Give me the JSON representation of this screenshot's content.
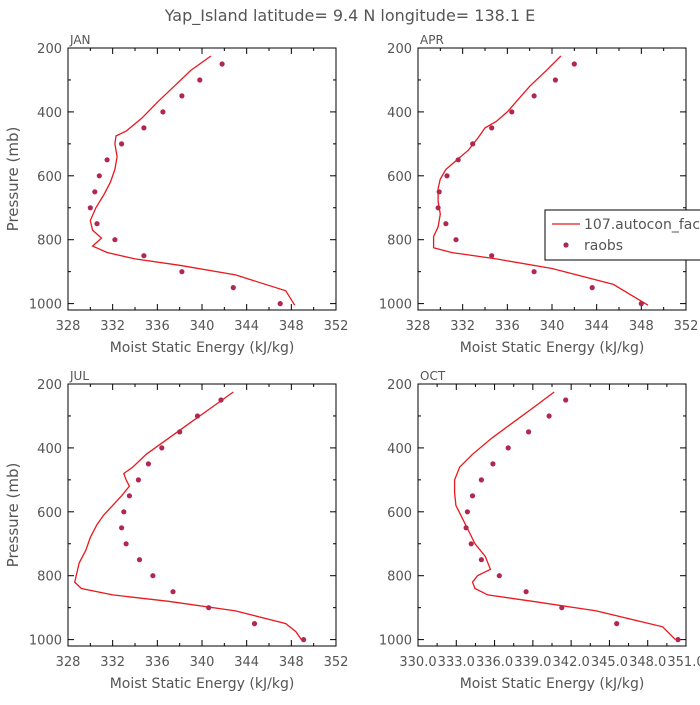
{
  "page_title": "Yap_Island  latitude= 9.4 N longitude= 138.1 E",
  "legend": {
    "model_label": "107.autocon_fac",
    "obs_label": "raobs"
  },
  "colors": {
    "model_line": "#e8191f",
    "obs_marker": "#b0284f",
    "frame": "#000000",
    "text": "#555555"
  },
  "chart_data": [
    {
      "type": "line",
      "panel": "top-left",
      "title": "JAN",
      "xlabel": "Moist Static Energy (kJ/kg)",
      "ylabel": "Pressure (mb)",
      "xlim": [
        328,
        352
      ],
      "ylim": [
        1020,
        200
      ],
      "xticks": [
        328,
        332,
        336,
        340,
        344,
        348,
        352
      ],
      "xtick_labels": [
        "328",
        "332",
        "336",
        "340",
        "344",
        "348",
        "352"
      ],
      "yticks": [
        200,
        400,
        600,
        800,
        1000
      ],
      "ytick_labels": [
        "200",
        "400",
        "600",
        "800",
        "1000"
      ],
      "series": [
        {
          "name": "107.autocon_fac",
          "kind": "line",
          "x": [
            340.8,
            339.0,
            337.5,
            336.0,
            334.6,
            333.2,
            332.3,
            332.2,
            332.4,
            332.2,
            331.8,
            331.2,
            330.5,
            330.0,
            330.2,
            331.0,
            330.2,
            331.5,
            334.0,
            338.0,
            343.0,
            347.5,
            348.3
          ],
          "y": [
            225,
            270,
            320,
            370,
            420,
            460,
            475,
            500,
            540,
            580,
            620,
            660,
            700,
            740,
            770,
            795,
            820,
            840,
            860,
            880,
            910,
            960,
            1005
          ]
        },
        {
          "name": "raobs",
          "kind": "scatter",
          "x": [
            341.8,
            339.8,
            338.2,
            336.5,
            334.8,
            332.8,
            331.5,
            330.8,
            330.4,
            330.0,
            330.6,
            332.2,
            334.8,
            338.2,
            342.8,
            347.0
          ],
          "y": [
            250,
            300,
            350,
            400,
            450,
            500,
            550,
            600,
            650,
            700,
            750,
            800,
            850,
            900,
            950,
            1000
          ]
        }
      ]
    },
    {
      "type": "line",
      "panel": "top-right",
      "title": "APR",
      "xlabel": "Moist Static Energy (kJ/kg)",
      "ylabel": "",
      "xlim": [
        328,
        352
      ],
      "ylim": [
        1020,
        200
      ],
      "xticks": [
        328,
        332,
        336,
        340,
        344,
        348,
        352
      ],
      "xtick_labels": [
        "328",
        "332",
        "336",
        "340",
        "344",
        "348",
        "352"
      ],
      "yticks": [
        200,
        400,
        600,
        800,
        1000
      ],
      "ytick_labels": [
        "200",
        "400",
        "600",
        "800",
        "1000"
      ],
      "legend": "right",
      "series": [
        {
          "name": "107.autocon_fac",
          "kind": "line",
          "x": [
            340.8,
            339.5,
            338.0,
            337.0,
            336.0,
            335.0,
            334.0,
            333.4,
            332.5,
            331.5,
            330.5,
            330.0,
            329.8,
            329.8,
            330.0,
            329.8,
            329.4,
            329.4,
            331.0,
            335.0,
            340.0,
            345.5,
            348.6
          ],
          "y": [
            225,
            270,
            320,
            360,
            400,
            430,
            450,
            480,
            520,
            550,
            580,
            610,
            640,
            680,
            720,
            760,
            790,
            825,
            840,
            860,
            890,
            940,
            1005
          ]
        },
        {
          "name": "raobs",
          "kind": "scatter",
          "x": [
            342.0,
            340.3,
            338.4,
            336.4,
            334.6,
            332.9,
            331.6,
            330.6,
            329.9,
            329.8,
            330.5,
            331.4,
            334.6,
            338.4,
            343.6,
            348.0
          ],
          "y": [
            250,
            300,
            350,
            400,
            450,
            500,
            550,
            600,
            650,
            700,
            750,
            800,
            850,
            900,
            950,
            1000
          ]
        }
      ]
    },
    {
      "type": "line",
      "panel": "bottom-left",
      "title": "JUL",
      "xlabel": "Moist Static Energy (kJ/kg)",
      "ylabel": "Pressure (mb)",
      "xlim": [
        328,
        352
      ],
      "ylim": [
        1020,
        200
      ],
      "xticks": [
        328,
        332,
        336,
        340,
        344,
        348,
        352
      ],
      "xtick_labels": [
        "328",
        "332",
        "336",
        "340",
        "344",
        "348",
        "352"
      ],
      "yticks": [
        200,
        400,
        600,
        800,
        1000
      ],
      "ytick_labels": [
        "200",
        "400",
        "600",
        "800",
        "1000"
      ],
      "series": [
        {
          "name": "107.autocon_fac",
          "kind": "line",
          "x": [
            342.8,
            341.0,
            339.0,
            337.0,
            335.0,
            333.8,
            333.0,
            333.2,
            333.5,
            332.8,
            332.0,
            331.2,
            330.6,
            330.0,
            329.6,
            329.0,
            328.6,
            329.2,
            332.0,
            337.0,
            343.0,
            347.5,
            348.4,
            348.9
          ],
          "y": [
            225,
            270,
            320,
            370,
            420,
            460,
            480,
            500,
            520,
            550,
            580,
            610,
            640,
            680,
            720,
            760,
            820,
            840,
            860,
            880,
            910,
            950,
            975,
            1000
          ]
        },
        {
          "name": "raobs",
          "kind": "scatter",
          "x": [
            341.7,
            339.6,
            338.0,
            336.4,
            335.2,
            334.3,
            333.5,
            333.0,
            332.8,
            333.2,
            334.4,
            335.6,
            337.4,
            340.6,
            344.7,
            349.1
          ],
          "y": [
            250,
            300,
            350,
            400,
            450,
            500,
            550,
            600,
            650,
            700,
            750,
            800,
            850,
            900,
            950,
            1000
          ]
        }
      ]
    },
    {
      "type": "line",
      "panel": "bottom-right",
      "title": "OCT",
      "xlabel": "Moist Static Energy (kJ/kg)",
      "ylabel": "",
      "xlim": [
        330.03,
        351.03
      ],
      "ylim": [
        1020,
        200
      ],
      "xticks": [
        330.03,
        333.03,
        336.03,
        339.03,
        342.03,
        345.03,
        348.03,
        351.03
      ],
      "xtick_labels": [
        "330.0",
        "333.0",
        "336.0",
        "339.0",
        "342.0",
        "345.0",
        "348.0",
        "351.0"
      ],
      "yticks": [
        200,
        400,
        600,
        800,
        1000
      ],
      "ytick_labels": [
        "200",
        "400",
        "600",
        "800",
        "1000"
      ],
      "series": [
        {
          "name": "107.autocon_fac",
          "kind": "line",
          "x": [
            340.7,
            339.2,
            337.5,
            335.8,
            334.3,
            333.3,
            332.9,
            332.9,
            333.0,
            333.5,
            334.0,
            334.5,
            335.3,
            335.7,
            334.7,
            334.3,
            334.5,
            335.5,
            339.0,
            344.0,
            349.2,
            350.2
          ],
          "y": [
            225,
            270,
            320,
            370,
            420,
            460,
            500,
            540,
            580,
            620,
            660,
            700,
            740,
            780,
            800,
            820,
            840,
            860,
            880,
            910,
            960,
            1000
          ]
        },
        {
          "name": "raobs",
          "kind": "scatter",
          "x": [
            341.6,
            340.3,
            338.7,
            337.1,
            335.9,
            335.0,
            334.3,
            333.9,
            333.8,
            334.2,
            335.0,
            336.4,
            338.5,
            341.3,
            345.6,
            350.4
          ],
          "y": [
            250,
            300,
            350,
            400,
            450,
            500,
            550,
            600,
            650,
            700,
            750,
            800,
            850,
            900,
            950,
            1000
          ]
        }
      ]
    }
  ]
}
